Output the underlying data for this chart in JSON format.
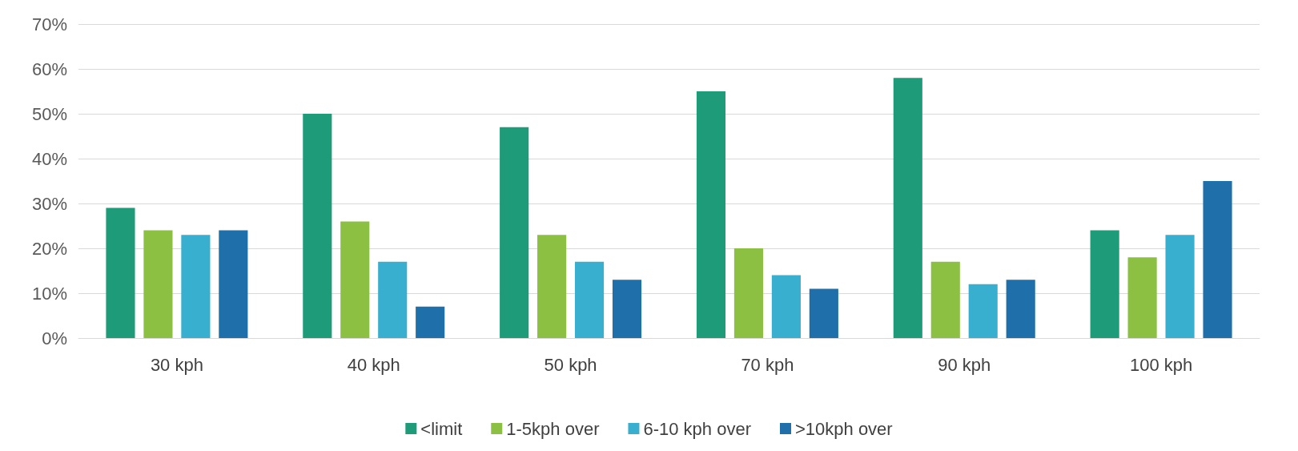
{
  "chart_data": {
    "type": "bar",
    "categories": [
      "30 kph",
      "40 kph",
      "50 kph",
      "70 kph",
      "90 kph",
      "100 kph"
    ],
    "series": [
      {
        "name": "<limit",
        "color": "#1e9b78",
        "values": [
          29,
          50,
          47,
          55,
          58,
          24
        ]
      },
      {
        "name": "1-5kph over",
        "color": "#8bc043",
        "values": [
          24,
          26,
          23,
          20,
          17,
          18
        ]
      },
      {
        "name": "6-10 kph over",
        "color": "#38afcf",
        "values": [
          23,
          17,
          17,
          14,
          12,
          23
        ]
      },
      {
        "name": ">10kph over",
        "color": "#1f6fab",
        "values": [
          24,
          7,
          13,
          11,
          13,
          35
        ]
      }
    ],
    "ylim": [
      0,
      70
    ],
    "yticks": [
      {
        "value": 0,
        "label": "0%"
      },
      {
        "value": 10,
        "label": "10%"
      },
      {
        "value": 20,
        "label": "20%"
      },
      {
        "value": 30,
        "label": "30%"
      },
      {
        "value": 40,
        "label": "40%"
      },
      {
        "value": 50,
        "label": "50%"
      },
      {
        "value": 60,
        "label": "60%"
      },
      {
        "value": 70,
        "label": "70%"
      }
    ],
    "grid": "y",
    "legend": "bottom"
  }
}
